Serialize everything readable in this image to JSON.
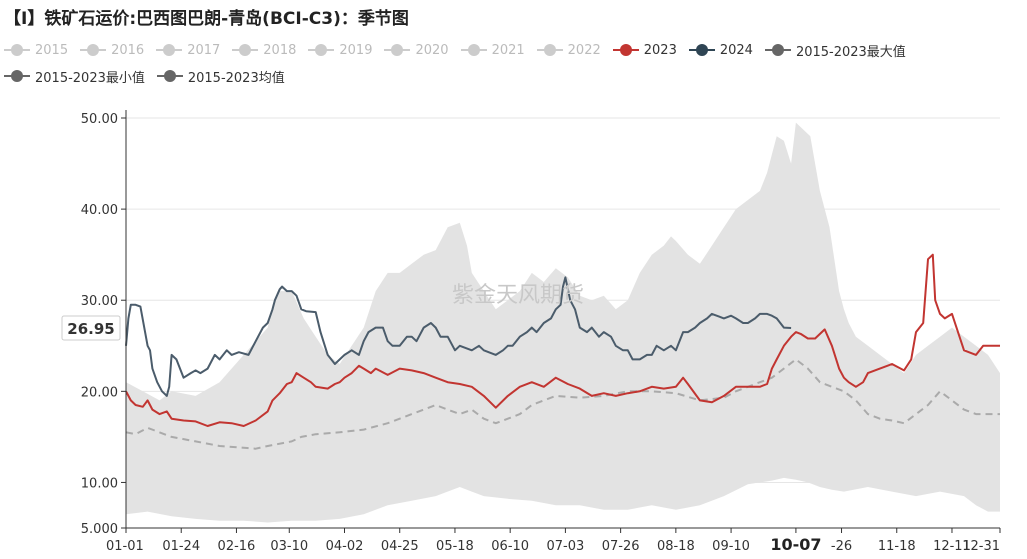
{
  "title": "【I】铁矿石运价:巴西图巴朗-青岛(BCI-C3)：季节图",
  "watermark": "紫金天风期货",
  "callout_value": "26.95",
  "highlight_label": "10-07",
  "colors": {
    "inactive": "#cccccc",
    "y2023": "#c23531",
    "y2024": "#4b5c6b",
    "band": "#e3e3e3",
    "avg": "#aaaaaa",
    "axis": "#333333",
    "grid": "#e6e6e6"
  },
  "legend": [
    {
      "label": "2015",
      "color": "#cccccc"
    },
    {
      "label": "2016",
      "color": "#cccccc"
    },
    {
      "label": "2017",
      "color": "#cccccc"
    },
    {
      "label": "2018",
      "color": "#cccccc"
    },
    {
      "label": "2019",
      "color": "#cccccc"
    },
    {
      "label": "2020",
      "color": "#cccccc"
    },
    {
      "label": "2021",
      "color": "#cccccc"
    },
    {
      "label": "2022",
      "color": "#cccccc"
    },
    {
      "label": "2023",
      "color": "#c23531"
    },
    {
      "label": "2024",
      "color": "#2f4554"
    },
    {
      "label": "2015-2023最大值",
      "color": "#666666"
    },
    {
      "label": "2015-2023最小值",
      "color": "#666666"
    },
    {
      "label": "2015-2023均值",
      "color": "#666666"
    }
  ],
  "chart_data": {
    "type": "line",
    "title": "【I】铁矿石运价:巴西图巴朗-青岛(BCI-C3)：季节图",
    "x_domain": [
      1,
      365
    ],
    "ylim": [
      5,
      50
    ],
    "yticks": [
      {
        "value": 5,
        "label": "5.000"
      },
      {
        "value": 10,
        "label": "10.00"
      },
      {
        "value": 20,
        "label": "20.00"
      },
      {
        "value": 30,
        "label": "30.00"
      },
      {
        "value": 40,
        "label": "40.00"
      },
      {
        "value": 50,
        "label": "50.00"
      }
    ],
    "xticks": [
      {
        "day": 1,
        "label": "01-01"
      },
      {
        "day": 24,
        "label": "01-24"
      },
      {
        "day": 47,
        "label": "02-16"
      },
      {
        "day": 69,
        "label": "03-10"
      },
      {
        "day": 92,
        "label": "04-02"
      },
      {
        "day": 115,
        "label": "04-25"
      },
      {
        "day": 138,
        "label": "05-18"
      },
      {
        "day": 161,
        "label": "06-10"
      },
      {
        "day": 184,
        "label": "07-03"
      },
      {
        "day": 207,
        "label": "07-26"
      },
      {
        "day": 230,
        "label": "08-18"
      },
      {
        "day": 253,
        "label": "09-10"
      },
      {
        "day": 280,
        "label": "10-07"
      },
      {
        "day": 299,
        "label": "-26"
      },
      {
        "day": 322,
        "label": "11-18"
      },
      {
        "day": 345,
        "label": "12-11"
      },
      {
        "day": 365,
        "label": "12-31"
      }
    ],
    "series": [
      {
        "name": "2015-2023最大值",
        "x": [
          1,
          8,
          15,
          20,
          30,
          40,
          50,
          60,
          62,
          65,
          70,
          75,
          80,
          85,
          90,
          95,
          100,
          105,
          110,
          115,
          120,
          125,
          130,
          135,
          140,
          143,
          145,
          150,
          155,
          160,
          165,
          170,
          175,
          180,
          185,
          190,
          195,
          200,
          205,
          210,
          215,
          220,
          225,
          228,
          230,
          235,
          240,
          245,
          250,
          255,
          260,
          265,
          268,
          270,
          272,
          275,
          278,
          280,
          282,
          286,
          290,
          294,
          298,
          300,
          302,
          305,
          310,
          315,
          320,
          325,
          330,
          335,
          340,
          345,
          350,
          355,
          360,
          365
        ],
        "y": [
          21,
          20,
          19,
          20,
          19.5,
          21,
          24,
          27,
          29.5,
          31,
          31,
          28,
          26,
          24,
          23,
          25,
          27,
          31,
          33,
          33,
          34,
          35,
          35.5,
          38,
          38.5,
          36,
          33,
          31,
          29,
          30,
          31,
          33,
          32,
          33.5,
          32.5,
          30.5,
          30,
          30.5,
          29,
          30,
          33,
          35,
          36,
          37,
          36.5,
          35,
          34,
          36,
          38,
          40,
          41,
          42,
          44,
          46,
          48,
          47.5,
          45,
          49.5,
          49,
          48,
          42,
          38,
          31,
          29,
          27.5,
          26,
          25,
          24,
          23,
          22,
          24,
          25,
          26,
          27,
          26,
          25,
          24,
          22
        ]
      },
      {
        "name": "2015-2023最小值",
        "x": [
          1,
          10,
          20,
          30,
          40,
          50,
          60,
          70,
          80,
          90,
          100,
          110,
          120,
          130,
          140,
          145,
          150,
          160,
          170,
          180,
          190,
          200,
          210,
          220,
          230,
          240,
          250,
          260,
          265,
          270,
          275,
          280,
          285,
          290,
          295,
          300,
          310,
          320,
          330,
          340,
          350,
          355,
          360,
          365
        ],
        "y": [
          6.5,
          6.8,
          6.3,
          6.0,
          5.8,
          5.8,
          5.6,
          5.8,
          5.8,
          6.0,
          6.5,
          7.5,
          8.0,
          8.5,
          9.5,
          9.0,
          8.5,
          8.2,
          8.0,
          7.5,
          7.5,
          7.0,
          7.0,
          7.5,
          7.0,
          7.5,
          8.5,
          9.8,
          10.0,
          10.2,
          10.5,
          10.3,
          10.0,
          9.5,
          9.2,
          9.0,
          9.5,
          9.0,
          8.5,
          9.0,
          8.5,
          7.5,
          6.8,
          6.8
        ]
      },
      {
        "name": "2015-2023均值",
        "x": [
          1,
          5,
          10,
          20,
          30,
          40,
          50,
          55,
          60,
          70,
          74,
          80,
          90,
          100,
          110,
          115,
          120,
          125,
          130,
          135,
          140,
          145,
          150,
          155,
          160,
          165,
          170,
          175,
          180,
          190,
          200,
          210,
          220,
          230,
          240,
          250,
          255,
          260,
          265,
          270,
          275,
          280,
          285,
          290,
          295,
          300,
          305,
          310,
          315,
          320,
          325,
          330,
          335,
          340,
          345,
          350,
          355,
          365
        ],
        "y": [
          15.5,
          15.3,
          16,
          15,
          14.5,
          14.0,
          13.8,
          13.7,
          14.0,
          14.5,
          15.0,
          15.3,
          15.5,
          15.8,
          16.5,
          17.0,
          17.5,
          18.0,
          18.5,
          18.0,
          17.5,
          18.0,
          17.0,
          16.5,
          17.0,
          17.5,
          18.5,
          19.0,
          19.5,
          19.3,
          19.5,
          20.0,
          20.0,
          19.8,
          19.0,
          19.3,
          20.0,
          20.5,
          21.0,
          21.5,
          22.5,
          23.5,
          22.5,
          21.0,
          20.5,
          20.0,
          19.0,
          17.5,
          17.0,
          16.8,
          16.5,
          17.5,
          18.5,
          20.0,
          19.0,
          18.0,
          17.5,
          17.5
        ]
      },
      {
        "name": "2023",
        "x": [
          1,
          3,
          5,
          8,
          10,
          12,
          15,
          18,
          20,
          25,
          30,
          35,
          40,
          45,
          50,
          55,
          60,
          62,
          65,
          68,
          70,
          72,
          75,
          78,
          80,
          85,
          88,
          90,
          92,
          95,
          98,
          100,
          103,
          105,
          110,
          115,
          120,
          125,
          130,
          135,
          140,
          145,
          150,
          155,
          160,
          165,
          170,
          175,
          180,
          185,
          190,
          195,
          200,
          205,
          210,
          215,
          220,
          225,
          230,
          233,
          235,
          240,
          245,
          250,
          255,
          260,
          265,
          268,
          270,
          272,
          275,
          278,
          280,
          282,
          285,
          288,
          292,
          295,
          298,
          300,
          302,
          305,
          308,
          310,
          315,
          320,
          325,
          328,
          330,
          333,
          335,
          337,
          338,
          340,
          342,
          345,
          350,
          355,
          358,
          360,
          365
        ],
        "y": [
          20,
          19,
          18.5,
          18.3,
          19,
          18,
          17.5,
          17.8,
          17,
          16.8,
          16.7,
          16.2,
          16.6,
          16.5,
          16.2,
          16.8,
          17.8,
          19.0,
          19.8,
          20.8,
          21.0,
          22.0,
          21.5,
          21.0,
          20.5,
          20.3,
          20.8,
          21.0,
          21.5,
          22.0,
          22.8,
          22.5,
          22.0,
          22.5,
          21.8,
          22.5,
          22.3,
          22.0,
          21.5,
          21.0,
          20.8,
          20.5,
          19.5,
          18.2,
          19.5,
          20.5,
          21.0,
          20.5,
          21.5,
          20.8,
          20.3,
          19.5,
          19.8,
          19.5,
          19.8,
          20.0,
          20.5,
          20.3,
          20.5,
          21.5,
          20.8,
          19.0,
          18.8,
          19.5,
          20.5,
          20.5,
          20.5,
          20.8,
          22.5,
          23.5,
          25.0,
          26.0,
          26.5,
          26.3,
          25.8,
          25.8,
          26.8,
          25.0,
          22.5,
          21.5,
          21.0,
          20.5,
          21.0,
          22.0,
          22.5,
          23.0,
          22.3,
          23.5,
          26.5,
          27.5,
          34.5,
          35.0,
          30.0,
          28.5,
          28.0,
          28.5,
          24.5,
          24.0,
          25.0,
          25.0,
          25.0
        ]
      },
      {
        "name": "2024",
        "x": [
          1,
          2,
          3,
          5,
          7,
          10,
          11,
          12,
          14,
          16,
          18,
          19,
          20,
          22,
          25,
          28,
          30,
          32,
          35,
          38,
          40,
          43,
          45,
          48,
          52,
          55,
          58,
          60,
          62,
          63,
          65,
          66,
          68,
          70,
          72,
          74,
          76,
          80,
          82,
          85,
          88,
          92,
          95,
          98,
          100,
          102,
          105,
          108,
          110,
          112,
          115,
          118,
          120,
          122,
          125,
          128,
          130,
          132,
          135,
          138,
          140,
          145,
          148,
          150,
          155,
          158,
          160,
          162,
          165,
          168,
          170,
          172,
          175,
          178,
          180,
          182,
          183,
          184,
          186,
          188,
          190,
          193,
          195,
          198,
          200,
          203,
          205,
          208,
          210,
          212,
          215,
          218,
          220,
          222,
          225,
          228,
          230,
          233,
          235,
          238,
          240,
          243,
          245,
          248,
          250,
          253,
          255,
          258,
          260,
          263,
          265,
          268,
          270,
          272,
          275,
          278
        ],
        "y": [
          25,
          28,
          29.5,
          29.5,
          29.3,
          25,
          24.5,
          22.5,
          21,
          20,
          19.5,
          20.5,
          24,
          23.5,
          21.5,
          22.0,
          22.3,
          22.0,
          22.5,
          24.0,
          23.5,
          24.5,
          24.0,
          24.3,
          24.0,
          25.5,
          27.0,
          27.5,
          29.0,
          30.0,
          31.2,
          31.5,
          31.0,
          31.0,
          30.5,
          29.0,
          28.8,
          28.7,
          26.5,
          24.0,
          23.0,
          24.0,
          24.5,
          24.0,
          25.5,
          26.5,
          27.0,
          27.0,
          25.5,
          25.0,
          25.0,
          26.0,
          26.0,
          25.5,
          27.0,
          27.5,
          27.0,
          26.0,
          26.0,
          24.5,
          25.0,
          24.5,
          25.0,
          24.5,
          24.0,
          24.5,
          25.0,
          25.0,
          26.0,
          26.5,
          27.0,
          26.5,
          27.5,
          28.0,
          29.0,
          29.5,
          31.5,
          32.5,
          30.0,
          29.0,
          27.0,
          26.5,
          27.0,
          26.0,
          26.5,
          26.0,
          25.0,
          24.5,
          24.5,
          23.5,
          23.5,
          24.0,
          24.0,
          25.0,
          24.5,
          25.0,
          24.5,
          26.5,
          26.5,
          27.0,
          27.5,
          28.0,
          28.5,
          28.2,
          28.0,
          28.3,
          28.0,
          27.5,
          27.5,
          28.0,
          28.5,
          28.5,
          28.3,
          28.0,
          27.0,
          26.95
        ]
      }
    ]
  }
}
